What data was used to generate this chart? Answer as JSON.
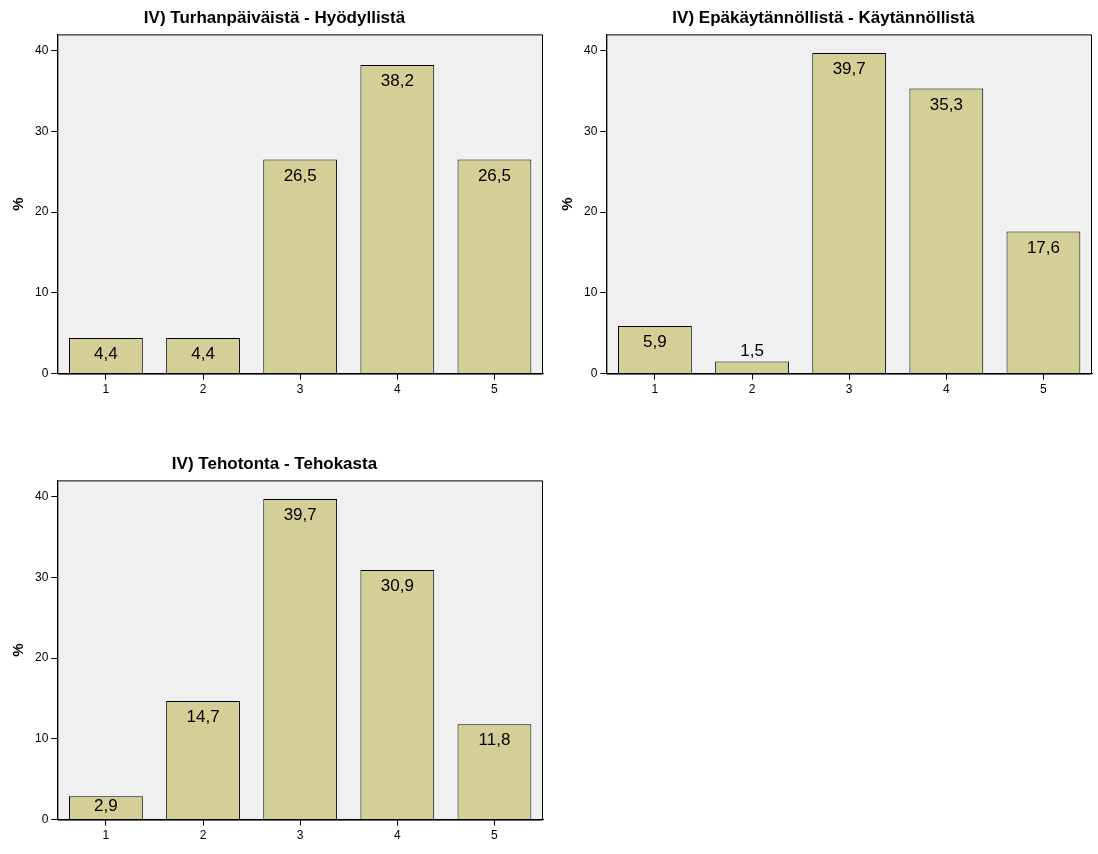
{
  "chart_data": [
    {
      "type": "bar",
      "title": "IV) Turhanpäiväistä - Hyödyllistä",
      "ylabel": "%",
      "categories": [
        "1",
        "2",
        "3",
        "4",
        "5"
      ],
      "values": [
        4.4,
        4.4,
        26.5,
        38.2,
        26.5
      ],
      "value_labels": [
        "4,4",
        "4,4",
        "26,5",
        "38,2",
        "26,5"
      ],
      "color": "#d3cf97",
      "ylim": [
        0,
        42
      ],
      "yticks": [
        0,
        10,
        20,
        30,
        40
      ],
      "grid": false,
      "legend": false
    },
    {
      "type": "bar",
      "title": "IV) Epäkäytännöllistä - Käytännöllistä",
      "ylabel": "%",
      "categories": [
        "1",
        "2",
        "3",
        "4",
        "5"
      ],
      "values": [
        5.9,
        1.5,
        39.7,
        35.3,
        17.6
      ],
      "value_labels": [
        "5,9",
        "1,5",
        "39,7",
        "35,3",
        "17,6"
      ],
      "color": "#d3cf97",
      "ylim": [
        0,
        42
      ],
      "yticks": [
        0,
        10,
        20,
        30,
        40
      ],
      "grid": false,
      "legend": false
    },
    {
      "type": "bar",
      "title": "IV) Tehotonta - Tehokasta",
      "ylabel": "%",
      "categories": [
        "1",
        "2",
        "3",
        "4",
        "5"
      ],
      "values": [
        2.9,
        14.7,
        39.7,
        30.9,
        11.8
      ],
      "value_labels": [
        "2,9",
        "14,7",
        "39,7",
        "30,9",
        "11,8"
      ],
      "color": "#d3cf97",
      "ylim": [
        0,
        42
      ],
      "yticks": [
        0,
        10,
        20,
        30,
        40
      ],
      "grid": false,
      "legend": false
    }
  ]
}
